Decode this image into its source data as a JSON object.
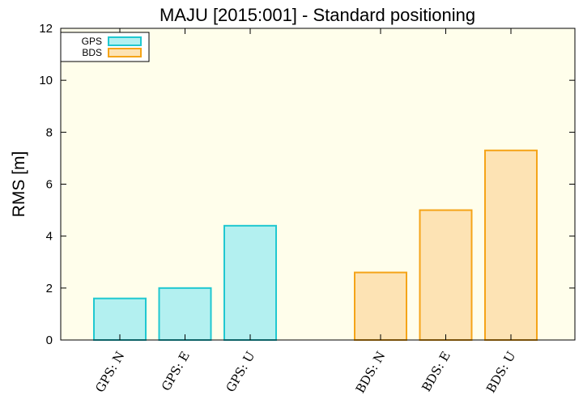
{
  "chart_data": {
    "type": "bar",
    "title": "MAJU [2015:001] - Standard positioning",
    "xlabel": "",
    "ylabel": "RMS [m]",
    "ylim": [
      0,
      12
    ],
    "yticks": [
      "0",
      "2",
      "4",
      "6",
      "8",
      "10",
      "12"
    ],
    "grid": false,
    "legend_position": "top-left",
    "series": [
      {
        "name": "GPS",
        "categories": [
          "GPS: N",
          "GPS: E",
          "GPS: U"
        ],
        "values": [
          1.6,
          2.0,
          4.4
        ],
        "fill": "#b3f0f0",
        "stroke": "#20c8d0"
      },
      {
        "name": "BDS",
        "categories": [
          "BDS: N",
          "BDS: E",
          "BDS: U"
        ],
        "values": [
          2.6,
          5.0,
          7.3
        ],
        "fill": "#fde3b4",
        "stroke": "#f5a418"
      }
    ],
    "colors": {
      "plot_background": "#fffeeb",
      "page_background": "#ffffff"
    }
  }
}
